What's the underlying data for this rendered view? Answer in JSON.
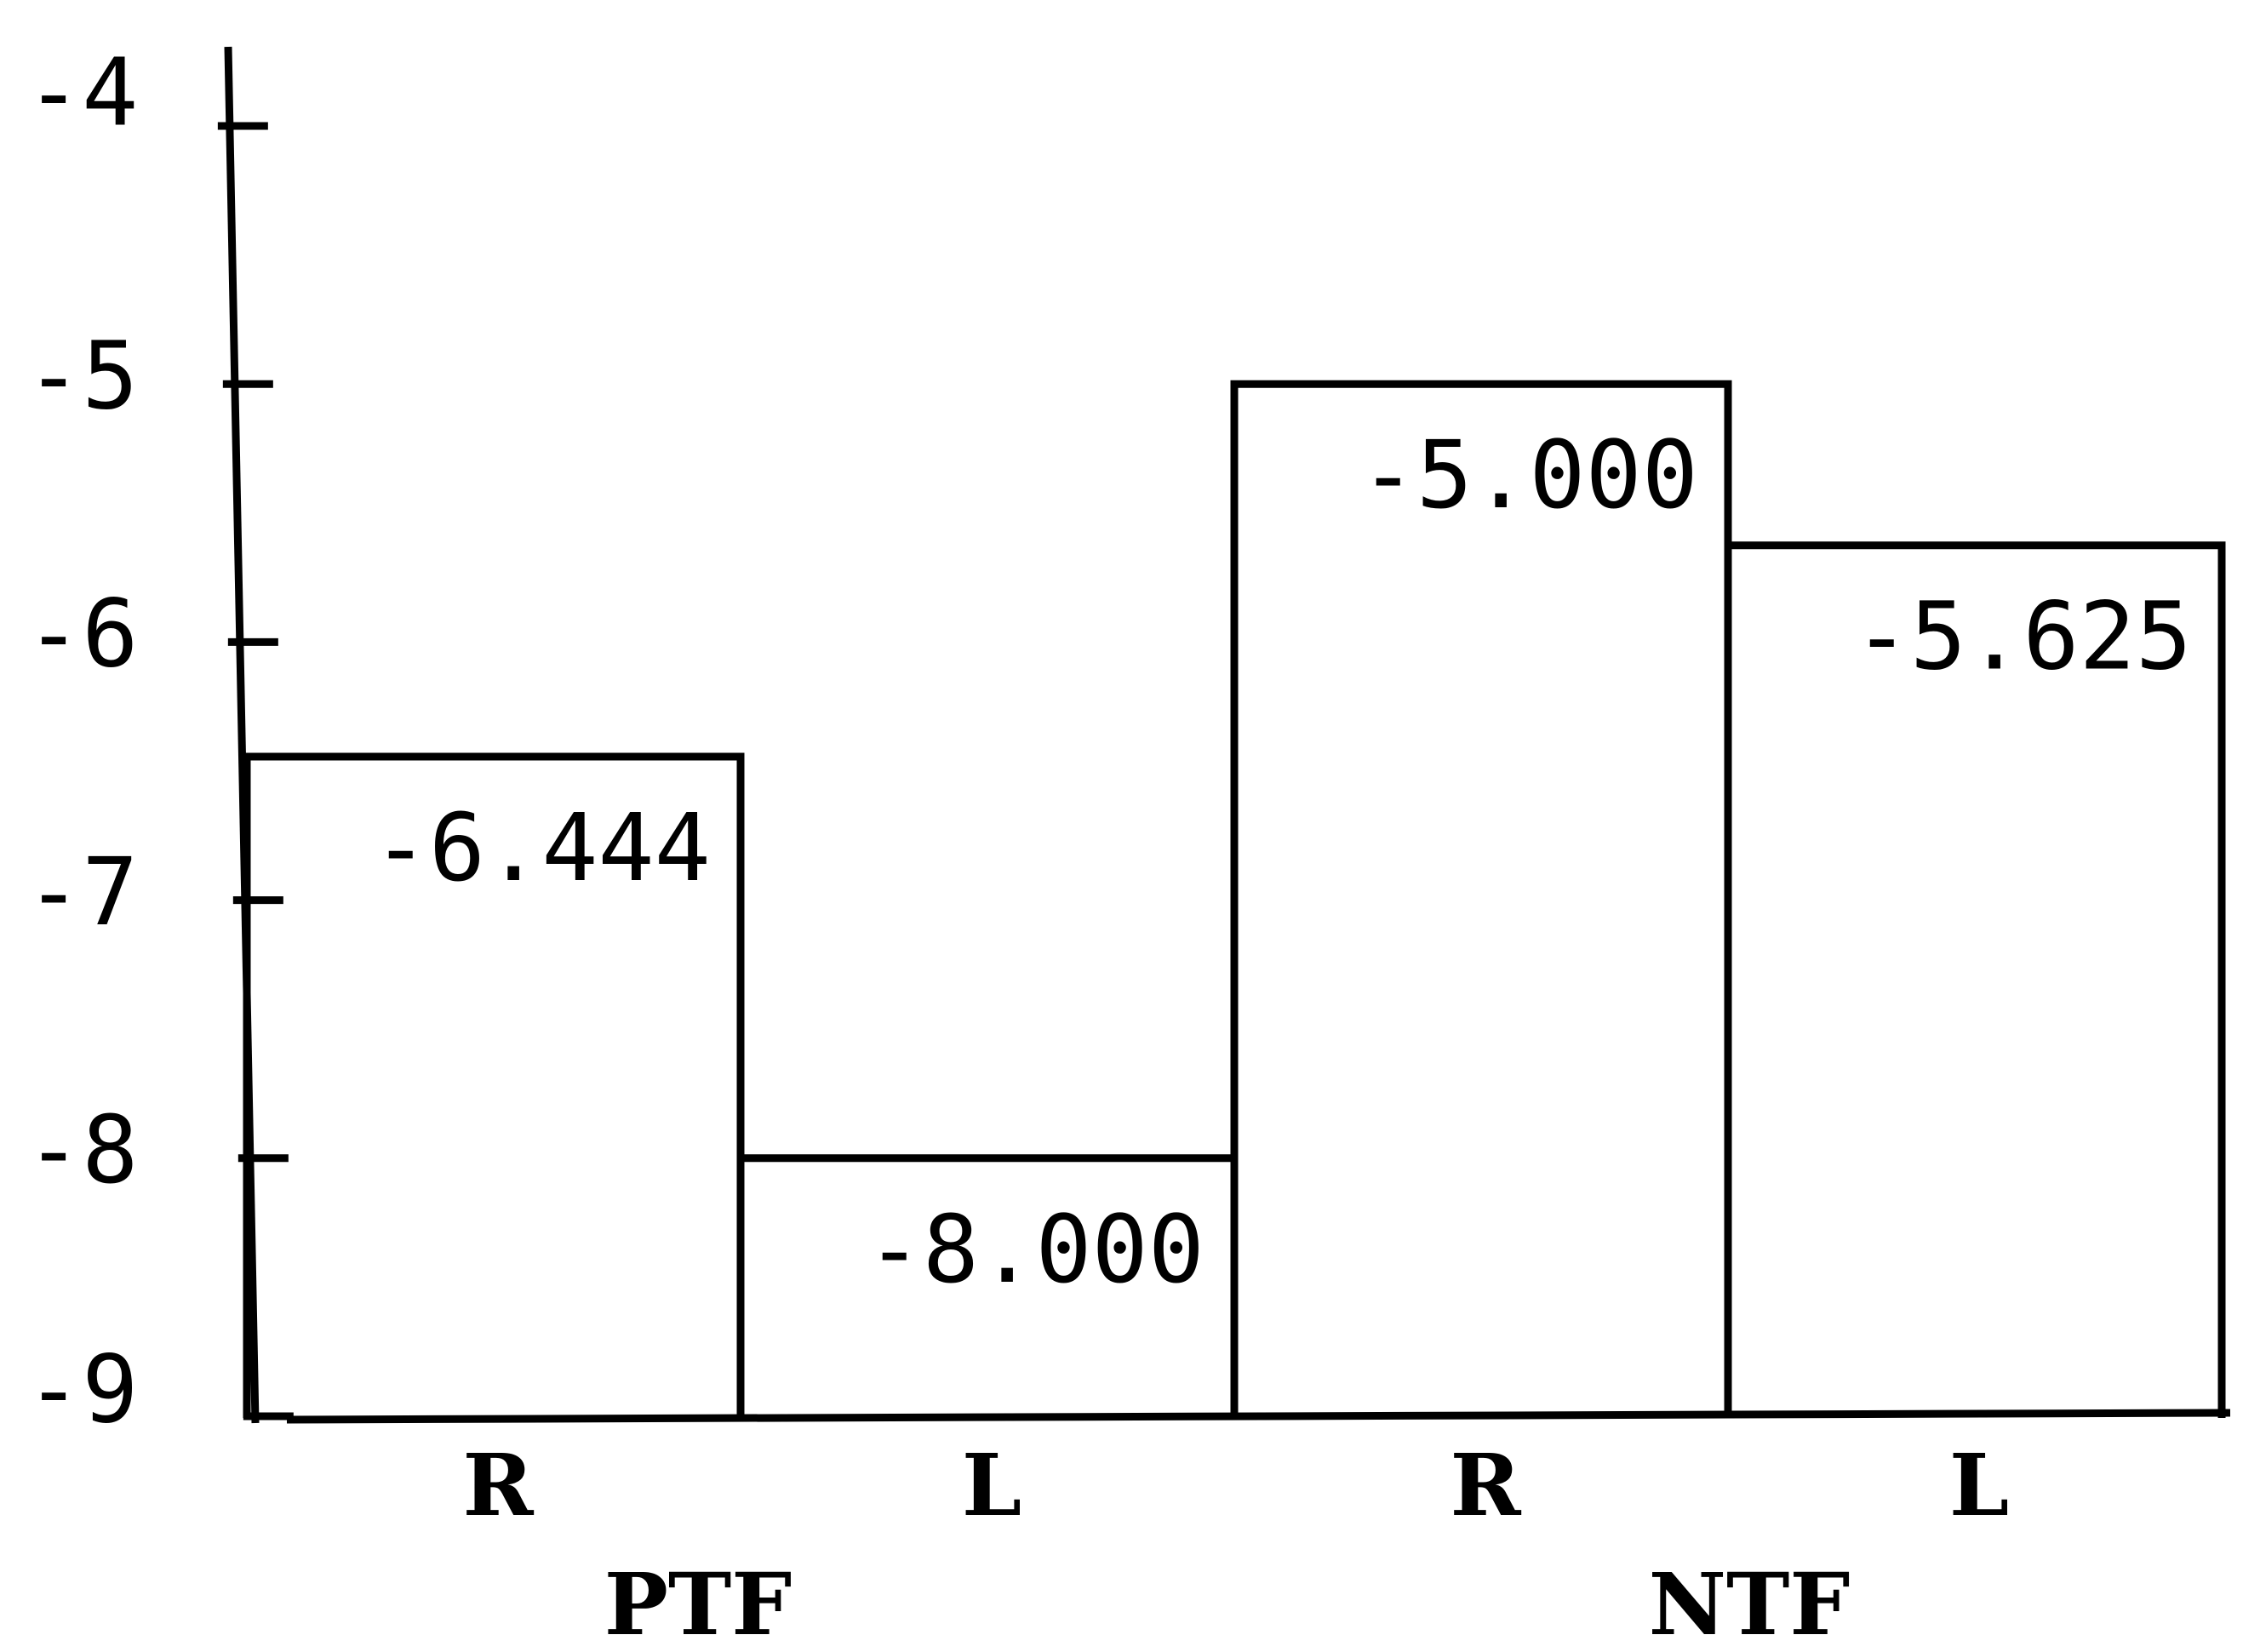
{
  "chart_data": {
    "type": "bar",
    "categories": [
      "R",
      "L",
      "R",
      "L"
    ],
    "groups": [
      {
        "label": "PTF",
        "categories": [
          "R",
          "L"
        ]
      },
      {
        "label": "NTF",
        "categories": [
          "R",
          "L"
        ]
      }
    ],
    "values": [
      -6.444,
      -8.0,
      -5.0,
      -5.625
    ],
    "value_labels": [
      "-6.444",
      "-8.000",
      "-5.000",
      "-5.625"
    ],
    "title": "",
    "xlabel": "",
    "ylabel": "",
    "ylim": [
      -9,
      -4
    ],
    "yticks": [
      -4,
      -5,
      -6,
      -7,
      -8,
      -9
    ],
    "ytick_labels": [
      "-4",
      "-5",
      "-6",
      "-7",
      "-8",
      "-9"
    ],
    "grid": false,
    "legend": "none"
  }
}
